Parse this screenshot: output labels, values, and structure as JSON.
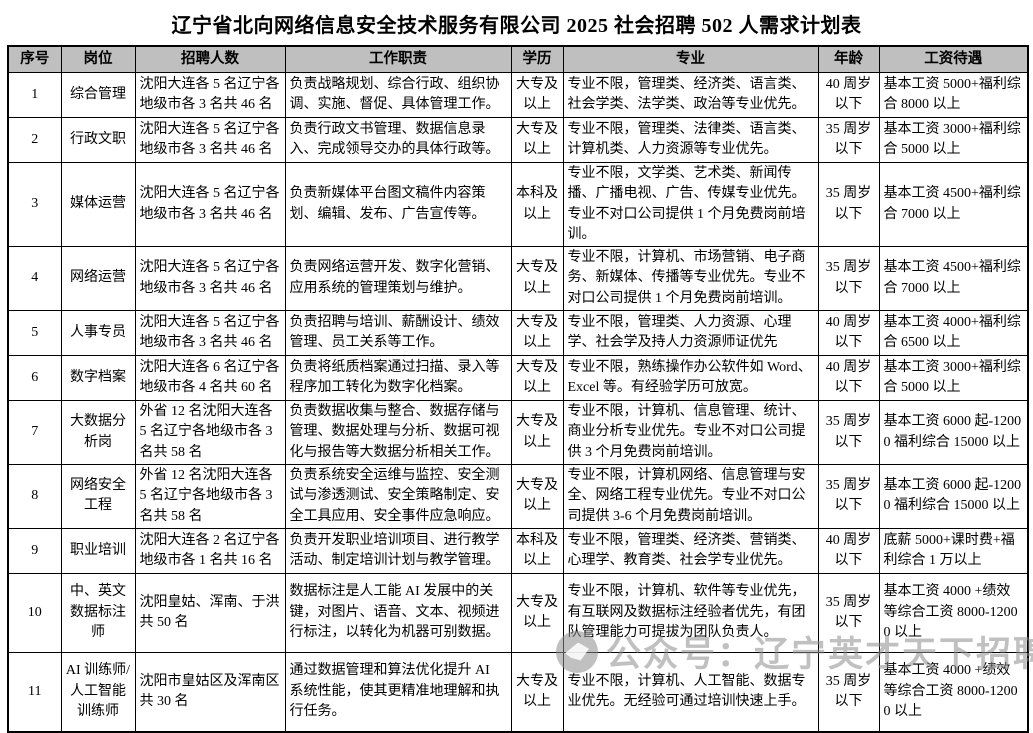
{
  "page": {
    "title": "辽宁省北向网络信息安全技术服务有限公司 2025 社会招聘 502 人需求计划表"
  },
  "colors": {
    "header_bg": "#bfbfbf",
    "border": "#000000",
    "watermark": "#8c8c8c"
  },
  "watermark": {
    "icon": "logo-circle-icon",
    "label": "公众号：辽宁英才天下招聘号"
  },
  "table": {
    "headers": [
      "序号",
      "岗位",
      "招聘人数",
      "工作职责",
      "学历",
      "专业",
      "年龄",
      "工资待遇"
    ],
    "rows": [
      {
        "no": "1",
        "position": "综合管理",
        "headcount": "沈阳大连各 5 名辽宁各地级市各 3 名共 46 名",
        "duties": "负责战略规划、综合行政、组织协调、实施、督促、具体管理工作。",
        "education": "大专及以上",
        "major": "专业不限，管理类、经济类、语言类、社会学类、法学类、政治等专业优先。",
        "age": "40 周岁以下",
        "salary": "基本工资 5000+福利综合 8000 以上"
      },
      {
        "no": "2",
        "position": "行政文职",
        "headcount": "沈阳大连各 5 名辽宁各地级市各 3 名共 46 名",
        "duties": "负责行政文书管理、数据信息录入、完成领导交办的具体行政等。",
        "education": "大专及以上",
        "major": "专业不限，管理类、法律类、语言类、计算机类、人力资源等专业优先。",
        "age": "35 周岁以下",
        "salary": "基本工资 3000+福利综合 5000 以上"
      },
      {
        "no": "3",
        "position": "媒体运营",
        "headcount": "沈阳大连各 5 名辽宁各地级市各 3 名共 46 名",
        "duties": "负责新媒体平台图文稿件内容策划、编辑、发布、广告宣传等。",
        "education": "本科及以上",
        "major": "专业不限，文学类、艺术类、新闻传播、广播电视、广告、传媒专业优先。专业不对口公司提供 1 个月免费岗前培训。",
        "age": "35 周岁以下",
        "salary": "基本工资 4500+福利综合 7000 以上"
      },
      {
        "no": "4",
        "position": "网络运营",
        "headcount": "沈阳大连各 5 名辽宁各地级市各 3 名共 46 名",
        "duties": "负责网络运营开发、数字化营销、应用系统的管理策划与维护。",
        "education": "大专及以上",
        "major": "专业不限，计算机、市场营销、电子商务、新媒体、传播等专业优先。专业不对口公司提供 1 个月免费岗前培训。",
        "age": "35 周岁以下",
        "salary": "基本工资 4500+福利综合 7000 以上"
      },
      {
        "no": "5",
        "position": "人事专员",
        "headcount": "沈阳大连各 5 名辽宁各地级市各 3 名共 46 名",
        "duties": "负责招聘与培训、薪酬设计、绩效管理、员工关系等工作。",
        "education": "大专及以上",
        "major": "专业不限，管理类、人力资源、心理学、社会学及持人力资源师证优先",
        "age": "40 周岁以下",
        "salary": "基本工资 4000+福利综合 6500 以上"
      },
      {
        "no": "6",
        "position": "数字档案",
        "headcount": "沈阳大连各 6 名辽宁各地级市各 4 名共 60 名",
        "duties": "负责将纸质档案通过扫描、录入等程序加工转化为数字化档案。",
        "education": "大专及以上",
        "major": "专业不限，熟练操作办公软件如 Word、Excel 等。有经验学历可放宽。",
        "age": "40 周岁以下",
        "salary": "基本工资 3000+福利综合 5000 以上"
      },
      {
        "no": "7",
        "position": "大数据分析岗",
        "headcount": "外省 12 名沈阳大连各 5 名辽宁各地级市各 3 名共 58 名",
        "duties": "负责数据收集与整合、数据存储与管理、数据处理与分析、数据可视化与报告等大数据分析相关工作。",
        "education": "大专及以上",
        "major": "专业不限，计算机、信息管理、统计、商业分析专业优先。专业不对口公司提供 3 个月免费岗前培训。",
        "age": "35 周岁以下",
        "salary": "基本工资 6000 起-12000 福利综合 15000 以上"
      },
      {
        "no": "8",
        "position": "网络安全工程",
        "headcount": "外省 12 名沈阳大连各 5 名辽宁各地级市各 3 名共 58 名",
        "duties": "负责系统安全运维与监控、安全测试与渗透测试、安全策略制定、安全工具应用、安全事件应急响应。",
        "education": "大专及以上",
        "major": "专业不限，计算机网络、信息管理与安全、网络工程专业优先。专业不对口公司提供 3-6 个月免费岗前培训。",
        "age": "35 周岁以下",
        "salary": "基本工资 6000 起-12000 福利综合 15000 以上"
      },
      {
        "no": "9",
        "position": "职业培训",
        "headcount": "沈阳大连各 2 名辽宁各地级市各 1 名共 16 名",
        "duties": "负责开发职业培训项目、进行教学活动、制定培训计划与教学管理。",
        "education": "本科及以上",
        "major": "专业不限，管理类、经济类、营销类、心理学、教育类、社会学专业优先。",
        "age": "40 周岁以下",
        "salary": "底薪 5000+课时费+福利综合 1 万以上"
      },
      {
        "no": "10",
        "position": "中、英文数据标注师",
        "headcount": "沈阳皇姑、浑南、于洪共 50 名",
        "duties": "数据标注是人工能 AI 发展中的关键，对图片、语音、文本、视频进行标注，以转化为机器可别数据。",
        "education": "大专及以上",
        "major": "专业不限，计算机、软件等专业优先，有互联网及数据标注经验者优先，有团队管理能力可提拔为团队负责人。",
        "age": "35 周岁以下",
        "salary": "基本工资 4000 +绩效等综合工资 8000-12000 以上"
      },
      {
        "no": "11",
        "position": "AI 训练师/人工智能训练师",
        "headcount": "沈阳市皇姑区及浑南区共 30 名",
        "duties": "通过数据管理和算法优化提升 AI 系统性能，使其更精准地理解和执行任务。",
        "education": "大专及以上",
        "major": "专业不限，计算机、人工智能、数据专业优先。无经验可通过培训快速上手。",
        "age": "35 周岁以下",
        "salary": "基本工资 4000 +绩效等综合工资 8000-12000 以上"
      }
    ]
  }
}
